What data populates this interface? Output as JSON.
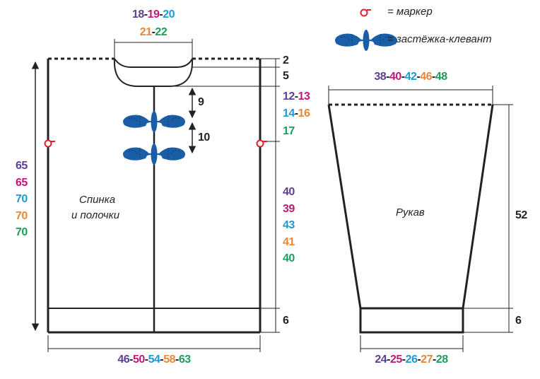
{
  "colors": {
    "size1": "#5b3f94",
    "size2": "#c0177a",
    "size3": "#1a9ad6",
    "size4": "#e8873a",
    "size5": "#1a9e5a",
    "plain": "#222222",
    "marker": "#e3202a",
    "toggle": "#1a5ea8"
  },
  "legend": {
    "marker_icon": "marker-ring-icon",
    "marker_label": "= маркер",
    "toggle_icon": "toggle-clasp-icon",
    "toggle_label": "= застёжка-клевант"
  },
  "body": {
    "title_line1": "Спинка",
    "title_line2": "и полочки",
    "neck_width_1": [
      [
        "18",
        "size1"
      ],
      [
        "19",
        "size2"
      ],
      [
        "20",
        "size3"
      ]
    ],
    "neck_width_2": [
      [
        "21",
        "size4"
      ],
      [
        "22",
        "size5"
      ]
    ],
    "shoulder_drop": [
      [
        "2",
        "plain"
      ]
    ],
    "neck_depth": [
      [
        "5",
        "plain"
      ]
    ],
    "armhole_1": [
      [
        "12",
        "size1"
      ],
      [
        "13",
        "size2"
      ]
    ],
    "armhole_2": [
      [
        "14",
        "size3"
      ],
      [
        "16",
        "size4"
      ]
    ],
    "armhole_3": [
      [
        "17",
        "size5"
      ]
    ],
    "toggle_spacing_1": [
      [
        "9",
        "plain"
      ]
    ],
    "toggle_spacing_2": [
      [
        "10",
        "plain"
      ]
    ],
    "side_length": [
      [
        [
          "40",
          "size1"
        ]
      ],
      [
        [
          "39",
          "size2"
        ]
      ],
      [
        [
          "43",
          "size3"
        ]
      ],
      [
        [
          "41",
          "size4"
        ]
      ],
      [
        [
          "40",
          "size5"
        ]
      ]
    ],
    "hem": [
      [
        "6",
        "plain"
      ]
    ],
    "total_length": [
      [
        [
          "65",
          "size1"
        ]
      ],
      [
        [
          "65",
          "size2"
        ]
      ],
      [
        [
          "70",
          "size3"
        ]
      ],
      [
        [
          "70",
          "size4"
        ]
      ],
      [
        [
          "70",
          "size5"
        ]
      ]
    ],
    "width": [
      [
        "46",
        "size1"
      ],
      [
        "50",
        "size2"
      ],
      [
        "54",
        "size3"
      ],
      [
        "58",
        "size4"
      ],
      [
        "63",
        "size5"
      ]
    ]
  },
  "sleeve": {
    "title": "Рукав",
    "top_width": [
      [
        "38",
        "size1"
      ],
      [
        "40",
        "size2"
      ],
      [
        "42",
        "size3"
      ],
      [
        "46",
        "size4"
      ],
      [
        "48",
        "size5"
      ]
    ],
    "length": [
      [
        "52",
        "plain"
      ]
    ],
    "cuff": [
      [
        "6",
        "plain"
      ]
    ],
    "bottom_width": [
      [
        "24",
        "size1"
      ],
      [
        "25",
        "size2"
      ],
      [
        "26",
        "size3"
      ],
      [
        "27",
        "size4"
      ],
      [
        "28",
        "size5"
      ]
    ]
  }
}
